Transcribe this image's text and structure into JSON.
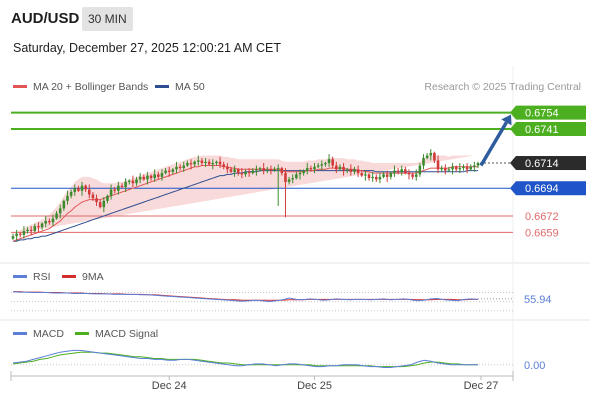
{
  "header": {
    "symbol": "AUD/USD",
    "timeframe": "30 MIN",
    "datetime": "Saturday, December 27, 2025 12:00:21 AM CET"
  },
  "colors": {
    "green_level": "#4caf1f",
    "blue_level": "#1f55c8",
    "red_level": "#e06a6a",
    "candle_up": "#3c8b2f",
    "candle_down": "#d23a3a",
    "bollinger_fill": "#f8d4d4",
    "ma20": "#e05555",
    "ma50": "#2d4f92",
    "arrow": "#2f5c9e",
    "rsi": "#5b7fd6",
    "rsi_ma": "#d32f2f",
    "macd": "#5b7fd6",
    "macd_signal": "#4caf1f"
  },
  "chart_data": [
    {
      "type": "candlestick",
      "legend": [
        "MA 20 + Bollinger Bands",
        "MA 50"
      ],
      "legend_placement": "top-left",
      "credit": "Research © 2025 Trading Central",
      "ylim": [
        0.6645,
        0.6764
      ],
      "x_ticks": [
        "Dec 24",
        "Dec 25",
        "Dec 27"
      ],
      "levels": [
        {
          "value": 0.6754,
          "label": "0.6754",
          "style": "green"
        },
        {
          "value": 0.6741,
          "label": "0.6741",
          "style": "green"
        },
        {
          "value": 0.6714,
          "label": "0.6714",
          "style": "current"
        },
        {
          "value": 0.6694,
          "label": "0.6694",
          "style": "blue"
        },
        {
          "value": 0.6672,
          "label": "0.6672",
          "style": "red"
        },
        {
          "value": 0.6659,
          "label": "0.6659",
          "style": "red"
        }
      ],
      "projection": {
        "from": 0.6712,
        "to": 0.6754
      },
      "close": [
        0.6656,
        0.6658,
        0.6657,
        0.666,
        0.6661,
        0.666,
        0.6664,
        0.6663,
        0.6666,
        0.6668,
        0.6667,
        0.667,
        0.6674,
        0.6678,
        0.6684,
        0.6688,
        0.6691,
        0.6694,
        0.6692,
        0.6696,
        0.6693,
        0.6689,
        0.6686,
        0.6683,
        0.6679,
        0.6684,
        0.6688,
        0.6693,
        0.6692,
        0.6696,
        0.6695,
        0.6699,
        0.67,
        0.6698,
        0.6701,
        0.6703,
        0.6701,
        0.6704,
        0.6702,
        0.6705,
        0.6703,
        0.6706,
        0.6708,
        0.6707,
        0.6709,
        0.6711,
        0.671,
        0.6712,
        0.6714,
        0.6713,
        0.6715,
        0.6716,
        0.6714,
        0.6715,
        0.6713,
        0.6714,
        0.6715,
        0.6713,
        0.6711,
        0.6709,
        0.6707,
        0.6709,
        0.6706,
        0.6705,
        0.6707,
        0.6706,
        0.6708,
        0.6709,
        0.671,
        0.6708,
        0.6709,
        0.6708,
        0.6709,
        0.671,
        0.6706,
        0.6699,
        0.6701,
        0.6702,
        0.6705,
        0.6706,
        0.6708,
        0.671,
        0.6709,
        0.6711,
        0.6712,
        0.6713,
        0.6714,
        0.6717,
        0.6712,
        0.6709,
        0.6711,
        0.6708,
        0.6709,
        0.6707,
        0.6709,
        0.6706,
        0.6704,
        0.6705,
        0.6702,
        0.6703,
        0.6701,
        0.6703,
        0.6705,
        0.6703,
        0.6706,
        0.6708,
        0.6707,
        0.6709,
        0.6706,
        0.6705,
        0.6703,
        0.6705,
        0.6712,
        0.6718,
        0.672,
        0.6722,
        0.6716,
        0.6709,
        0.671,
        0.6708,
        0.6709,
        0.6711,
        0.6709,
        0.671,
        0.6711,
        0.6709,
        0.6711,
        0.6712,
        0.6714
      ],
      "ma20": [
        0.6652,
        0.6653,
        0.6654,
        0.6655,
        0.6656,
        0.6657,
        0.6658,
        0.6659,
        0.666,
        0.6661,
        0.6662,
        0.6664,
        0.6666,
        0.6668,
        0.6671,
        0.6674,
        0.6676,
        0.6679,
        0.6681,
        0.6683,
        0.6684,
        0.6685,
        0.6685,
        0.6685,
        0.6685,
        0.6686,
        0.6687,
        0.6688,
        0.6689,
        0.669,
        0.6691,
        0.6692,
        0.6693,
        0.6694,
        0.6695,
        0.6696,
        0.6697,
        0.6698,
        0.6699,
        0.67,
        0.6701,
        0.6702,
        0.6703,
        0.6704,
        0.6705,
        0.6706,
        0.6707,
        0.6708,
        0.6709,
        0.671,
        0.6711,
        0.6711,
        0.6712,
        0.6712,
        0.6712,
        0.6712,
        0.6712,
        0.6712,
        0.6711,
        0.6711,
        0.671,
        0.671,
        0.6709,
        0.6709,
        0.6709,
        0.6709,
        0.6709,
        0.6709,
        0.6709,
        0.6709,
        0.6709,
        0.6709,
        0.6709,
        0.6709,
        0.6708,
        0.6707,
        0.6707,
        0.6707,
        0.6707,
        0.6707,
        0.6707,
        0.6708,
        0.6708,
        0.6708,
        0.6709,
        0.6709,
        0.6709,
        0.671,
        0.671,
        0.671,
        0.671,
        0.671,
        0.6709,
        0.6709,
        0.6709,
        0.6708,
        0.6708,
        0.6707,
        0.6707,
        0.6706,
        0.6706,
        0.6706,
        0.6706,
        0.6706,
        0.6706,
        0.6706,
        0.6706,
        0.6706,
        0.6706,
        0.6706,
        0.6706,
        0.6706,
        0.6707,
        0.6708,
        0.6709,
        0.671,
        0.671,
        0.671,
        0.671,
        0.671,
        0.671,
        0.6711,
        0.6711,
        0.6711,
        0.6711,
        0.6711,
        0.6711,
        0.6711,
        0.6711
      ],
      "ma50": [
        0.6652,
        0.6652,
        0.6653,
        0.6653,
        0.6654,
        0.6654,
        0.6655,
        0.6655,
        0.6656,
        0.6656,
        0.6657,
        0.6658,
        0.6659,
        0.666,
        0.6661,
        0.6662,
        0.6663,
        0.6664,
        0.6665,
        0.6666,
        0.6667,
        0.6668,
        0.6669,
        0.667,
        0.6671,
        0.6672,
        0.6673,
        0.6674,
        0.6675,
        0.6676,
        0.6677,
        0.6678,
        0.6679,
        0.668,
        0.6681,
        0.6682,
        0.6683,
        0.6684,
        0.6685,
        0.6686,
        0.6687,
        0.6688,
        0.6689,
        0.669,
        0.6691,
        0.6692,
        0.6693,
        0.6694,
        0.6695,
        0.6696,
        0.6697,
        0.6698,
        0.6699,
        0.67,
        0.6701,
        0.6702,
        0.6703,
        0.6704,
        0.6704,
        0.6705,
        0.6705,
        0.6706,
        0.6706,
        0.6706,
        0.6707,
        0.6707,
        0.6707,
        0.6707,
        0.6708,
        0.6708,
        0.6708,
        0.6708,
        0.6708,
        0.6708,
        0.6708,
        0.6708,
        0.6708,
        0.6708,
        0.6708,
        0.6708,
        0.6708,
        0.6708,
        0.6708,
        0.6708,
        0.6708,
        0.6708,
        0.6708,
        0.6708,
        0.6708,
        0.6708,
        0.6708,
        0.6708,
        0.6708,
        0.6708,
        0.6708,
        0.6708,
        0.6708,
        0.6708,
        0.6708,
        0.6708,
        0.6707,
        0.6707,
        0.6707,
        0.6707,
        0.6707,
        0.6707,
        0.6707,
        0.6707,
        0.6707,
        0.6707,
        0.6707,
        0.6707,
        0.6707,
        0.6707,
        0.6707,
        0.6707,
        0.6707,
        0.6707,
        0.6707,
        0.6707,
        0.6707,
        0.6707,
        0.6707,
        0.6707,
        0.6707,
        0.6708,
        0.6708,
        0.6708,
        0.6708
      ],
      "bollinger_width": [
        0.0006,
        0.0006,
        0.0007,
        0.0007,
        0.0008,
        0.0008,
        0.0008,
        0.0009,
        0.0009,
        0.001,
        0.0011,
        0.0012,
        0.0013,
        0.0015,
        0.0017,
        0.0018,
        0.0019,
        0.002,
        0.002,
        0.002,
        0.0019,
        0.0018,
        0.0017,
        0.0016,
        0.0014,
        0.0012,
        0.0011,
        0.001,
        0.0009,
        0.0009,
        0.0008,
        0.0008,
        0.0008,
        0.0008,
        0.0008,
        0.0008,
        0.0008,
        0.0008,
        0.0008,
        0.0008,
        0.0008,
        0.0008,
        0.0008,
        0.0008,
        0.0008,
        0.0008,
        0.0008,
        0.0008,
        0.0008,
        0.0008,
        0.0008,
        0.0008,
        0.0008,
        0.0008,
        0.0008,
        0.0008,
        0.0008,
        0.0008,
        0.0008,
        0.0008,
        0.0008,
        0.0008,
        0.0008,
        0.0008,
        0.0008,
        0.0008,
        0.0008,
        0.0008,
        0.0008,
        0.0008,
        0.0008,
        0.0008,
        0.0008,
        0.0008,
        0.0008,
        0.0008,
        0.0008,
        0.0008,
        0.0008,
        0.0008,
        0.0008,
        0.0008,
        0.0008,
        0.0008,
        0.0008,
        0.0008,
        0.0008,
        0.0008,
        0.0008,
        0.0008,
        0.0008,
        0.0008,
        0.0008,
        0.0008,
        0.0008,
        0.0008,
        0.0008,
        0.0008,
        0.0008,
        0.0008,
        0.0008,
        0.0008,
        0.0008,
        0.0008,
        0.0008,
        0.0008,
        0.0008,
        0.0008,
        0.0008,
        0.0008,
        0.0008,
        0.0008,
        0.0008,
        0.0009,
        0.001,
        0.001,
        0.001,
        0.001,
        0.001,
        0.001,
        0.0009,
        0.0009,
        0.0009,
        0.0009,
        0.0009,
        0.0009,
        0.0009,
        0.0009
      ],
      "spikes": [
        {
          "index": 73,
          "low": 0.668
        },
        {
          "index": 75,
          "low": 0.6671
        }
      ]
    },
    {
      "type": "line",
      "legend": [
        "RSI",
        "9MA"
      ],
      "ylim": [
        25,
        80
      ],
      "value_label": "55.94",
      "value": 55.94,
      "rsi": [
        72,
        71,
        71,
        70,
        70,
        70,
        69,
        69,
        69,
        68,
        68,
        68,
        67,
        67,
        67,
        66,
        66,
        66,
        66,
        65,
        65,
        64,
        63,
        62,
        61,
        60,
        59,
        58,
        57,
        56,
        55,
        54,
        53,
        52,
        51,
        52,
        53,
        52,
        50,
        52,
        54,
        58,
        55,
        54,
        56,
        55,
        53,
        54,
        56,
        55,
        54,
        55,
        55,
        54,
        55,
        56,
        54,
        55,
        56,
        54,
        52,
        53,
        56,
        57,
        54,
        53,
        52,
        55,
        56,
        55
      ],
      "rsi_ma": [
        72,
        72,
        71,
        71,
        71,
        70,
        70,
        70,
        69,
        69,
        69,
        68,
        68,
        68,
        67,
        67,
        67,
        66,
        66,
        66,
        65,
        65,
        64,
        63,
        62,
        61,
        60,
        59,
        58,
        57,
        56,
        55,
        54,
        54,
        53,
        53,
        53,
        53,
        53,
        53,
        53,
        54,
        54,
        54,
        55,
        55,
        55,
        55,
        55,
        55,
        55,
        55,
        55,
        55,
        55,
        55,
        55,
        55,
        55,
        55,
        54,
        54,
        54,
        55,
        55,
        55,
        54,
        54,
        55,
        55
      ]
    },
    {
      "type": "line",
      "legend": [
        "MACD",
        "MACD Signal"
      ],
      "ylim": [
        -0.0008,
        0.0022
      ],
      "value_label": "0.00",
      "value": 0,
      "macd": [
        0.0002,
        0.0003,
        0.0004,
        0.0006,
        0.0008,
        0.001,
        0.0012,
        0.0014,
        0.0015,
        0.0016,
        0.0016,
        0.0015,
        0.0014,
        0.0013,
        0.0012,
        0.0011,
        0.001,
        0.0009,
        0.0008,
        0.0007,
        0.0007,
        0.0006,
        0.0006,
        0.0005,
        0.0005,
        0.0006,
        0.0006,
        0.0005,
        0.0004,
        0.0003,
        0.0002,
        0.0001,
        0.0,
        -0.0001,
        -0.0001,
        0.0,
        0.0001,
        0.0001,
        0.0,
        -0.0001,
        0.0,
        0.0001,
        0.0001,
        0.0,
        -0.0001,
        -0.0002,
        -0.0002,
        -0.0001,
        -0.0001,
        0.0,
        0.0,
        0.0,
        -0.0001,
        -0.0002,
        -0.0002,
        -0.0003,
        -0.0003,
        -0.0002,
        -0.0001,
        0.0,
        0.0003,
        0.0005,
        0.0004,
        0.0002,
        0.0001,
        0.0,
        0.0,
        0.0,
        0.0,
        0.0
      ],
      "signal": [
        0.0001,
        0.0002,
        0.0003,
        0.0004,
        0.0006,
        0.0007,
        0.0009,
        0.0011,
        0.0012,
        0.0013,
        0.0014,
        0.0014,
        0.0014,
        0.0013,
        0.0013,
        0.0012,
        0.0011,
        0.001,
        0.0009,
        0.0009,
        0.0008,
        0.0007,
        0.0007,
        0.0006,
        0.0006,
        0.0006,
        0.0006,
        0.0006,
        0.0005,
        0.0004,
        0.0003,
        0.0002,
        0.0002,
        0.0001,
        0.0,
        0.0,
        0.0,
        0.0,
        0.0,
        0.0,
        0.0,
        0.0,
        0.0,
        0.0,
        0.0,
        -0.0001,
        -0.0001,
        -0.0001,
        -0.0001,
        -0.0001,
        -0.0001,
        -0.0001,
        -0.0001,
        -0.0001,
        -0.0002,
        -0.0002,
        -0.0002,
        -0.0002,
        -0.0002,
        -0.0001,
        0.0,
        0.0002,
        0.0003,
        0.0003,
        0.0002,
        0.0001,
        0.0001,
        0.0,
        0.0,
        0.0
      ]
    }
  ]
}
